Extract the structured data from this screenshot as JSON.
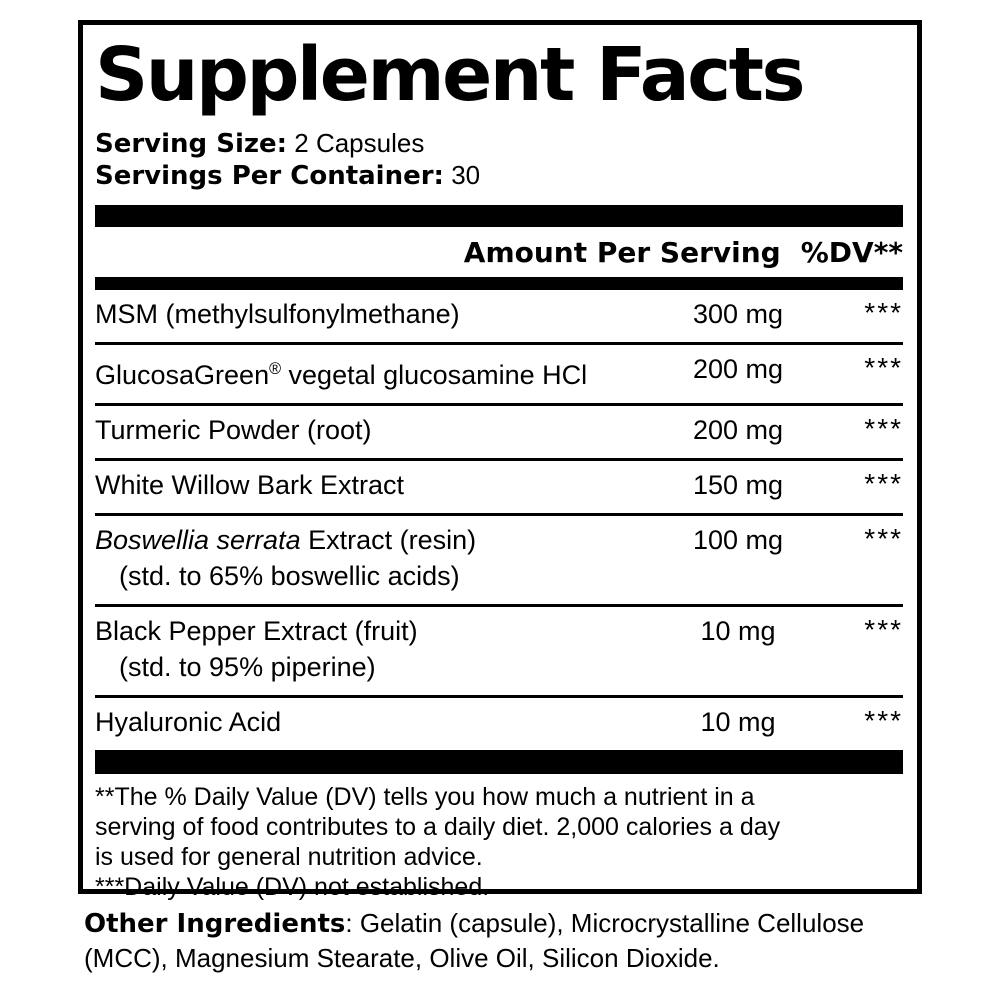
{
  "label": {
    "title": "Supplement Facts",
    "serving_size_label": "Serving Size:",
    "serving_size_value": "2 Capsules",
    "servings_per_container_label": "Servings Per Container:",
    "servings_per_container_value": "30",
    "columns": {
      "amount_header": "Amount Per Serving",
      "dv_header": "%DV**"
    },
    "rows": [
      {
        "name": "MSM (methylsulfonylmethane)",
        "amount": "300 mg",
        "dv": "***"
      },
      {
        "name_prefix": "GlucosaGreen",
        "trademark": "®",
        "name": " vegetal glucosamine HCl",
        "amount": "200 mg",
        "dv": "***"
      },
      {
        "name": "Turmeric Powder (root)",
        "amount": "200 mg",
        "dv": "***"
      },
      {
        "name": "White Willow Bark Extract",
        "amount": "150 mg",
        "dv": "***"
      },
      {
        "name_italic": "Boswellia serrata",
        "name": " Extract (resin)",
        "subnote": "(std. to 65% boswellic acids)",
        "amount": "100 mg",
        "dv": "***"
      },
      {
        "name": "Black Pepper Extract (fruit)",
        "subnote": "(std. to 95% piperine)",
        "amount": "10 mg",
        "dv": "***"
      },
      {
        "name": "Hyaluronic Acid",
        "amount": "10 mg",
        "dv": "***"
      }
    ],
    "footnote_lines": [
      "**The % Daily Value (DV) tells you how much a nutrient in a",
      "serving of food contributes to a daily diet. 2,000 calories a day",
      "is used for general nutrition advice.",
      "***Daily Value (DV) not established."
    ]
  },
  "other_ingredients": {
    "label": "Other Ingredients",
    "line1_rest": ": Gelatin (capsule), Microcrystalline Cellulose",
    "line2": "(MCC), Magnesium Stearate, Olive Oil, Silicon Dioxide."
  },
  "colors": {
    "text": "#000000",
    "background": "#ffffff",
    "rule": "#000000"
  }
}
